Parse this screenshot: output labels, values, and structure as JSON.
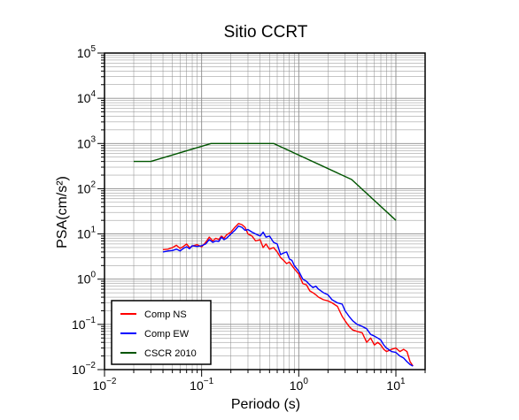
{
  "chart_data": {
    "type": "line",
    "title": "Sitio CCRT",
    "xlabel": "Periodo (s)",
    "ylabel": "PSA(cm/s²)",
    "x_scale": "log",
    "y_scale": "log",
    "xlim": [
      0.01,
      20
    ],
    "ylim": [
      0.01,
      100000
    ],
    "x_ticks": [
      {
        "value": 0.01,
        "base": "10",
        "exp": "−2"
      },
      {
        "value": 0.1,
        "base": "10",
        "exp": "−1"
      },
      {
        "value": 1,
        "base": "10",
        "exp": "0"
      },
      {
        "value": 10,
        "base": "10",
        "exp": "1"
      }
    ],
    "y_ticks": [
      {
        "value": 0.01,
        "base": "10",
        "exp": "−2"
      },
      {
        "value": 0.1,
        "base": "10",
        "exp": "−1"
      },
      {
        "value": 1,
        "base": "10",
        "exp": "0"
      },
      {
        "value": 10,
        "base": "10",
        "exp": "1"
      },
      {
        "value": 100,
        "base": "10",
        "exp": "2"
      },
      {
        "value": 1000,
        "base": "10",
        "exp": "3"
      },
      {
        "value": 10000,
        "base": "10",
        "exp": "4"
      },
      {
        "value": 100000,
        "base": "10",
        "exp": "5"
      }
    ],
    "grid": true,
    "legend_position": "bottom-left",
    "series": [
      {
        "name": "Comp NS",
        "color": "#ff0000",
        "points": [
          [
            0.04,
            4.5
          ],
          [
            0.045,
            4.6
          ],
          [
            0.05,
            5.0
          ],
          [
            0.055,
            5.6
          ],
          [
            0.06,
            4.8
          ],
          [
            0.065,
            5.3
          ],
          [
            0.07,
            6.0
          ],
          [
            0.075,
            5.0
          ],
          [
            0.08,
            5.4
          ],
          [
            0.09,
            5.8
          ],
          [
            0.1,
            5.2
          ],
          [
            0.11,
            6.5
          ],
          [
            0.12,
            8.5
          ],
          [
            0.13,
            7.0
          ],
          [
            0.14,
            8.0
          ],
          [
            0.15,
            7.5
          ],
          [
            0.16,
            9.0
          ],
          [
            0.17,
            8.0
          ],
          [
            0.18,
            9.5
          ],
          [
            0.2,
            11.0
          ],
          [
            0.22,
            14.0
          ],
          [
            0.24,
            17.0
          ],
          [
            0.26,
            16.0
          ],
          [
            0.28,
            14.0
          ],
          [
            0.3,
            10.0
          ],
          [
            0.33,
            9.0
          ],
          [
            0.36,
            7.0
          ],
          [
            0.4,
            7.5
          ],
          [
            0.43,
            5.0
          ],
          [
            0.46,
            6.0
          ],
          [
            0.5,
            4.6
          ],
          [
            0.55,
            5.0
          ],
          [
            0.6,
            4.0
          ],
          [
            0.65,
            3.0
          ],
          [
            0.7,
            2.6
          ],
          [
            0.75,
            2.2
          ],
          [
            0.8,
            2.4
          ],
          [
            0.85,
            2.0
          ],
          [
            0.9,
            1.7
          ],
          [
            1.0,
            1.3
          ],
          [
            1.1,
            0.8
          ],
          [
            1.2,
            0.75
          ],
          [
            1.3,
            0.55
          ],
          [
            1.4,
            0.5
          ],
          [
            1.5,
            0.45
          ],
          [
            1.6,
            0.4
          ],
          [
            1.8,
            0.35
          ],
          [
            2.0,
            0.33
          ],
          [
            2.2,
            0.3
          ],
          [
            2.5,
            0.25
          ],
          [
            2.8,
            0.15
          ],
          [
            3.0,
            0.12
          ],
          [
            3.3,
            0.09
          ],
          [
            3.6,
            0.075
          ],
          [
            4.0,
            0.07
          ],
          [
            4.5,
            0.065
          ],
          [
            5.0,
            0.04
          ],
          [
            5.5,
            0.05
          ],
          [
            6.0,
            0.035
          ],
          [
            6.5,
            0.04
          ],
          [
            7.0,
            0.035
          ],
          [
            7.5,
            0.028
          ],
          [
            8.0,
            0.025
          ],
          [
            9.0,
            0.028
          ],
          [
            10.0,
            0.03
          ],
          [
            11.0,
            0.025
          ],
          [
            12.0,
            0.028
          ],
          [
            13.0,
            0.025
          ],
          [
            14.0,
            0.015
          ],
          [
            15.0,
            0.012
          ]
        ]
      },
      {
        "name": "Comp EW",
        "color": "#0000ff",
        "points": [
          [
            0.04,
            4.0
          ],
          [
            0.045,
            4.2
          ],
          [
            0.05,
            4.3
          ],
          [
            0.055,
            4.6
          ],
          [
            0.06,
            4.2
          ],
          [
            0.065,
            4.8
          ],
          [
            0.07,
            5.2
          ],
          [
            0.075,
            4.7
          ],
          [
            0.08,
            5.5
          ],
          [
            0.09,
            5.3
          ],
          [
            0.1,
            5.5
          ],
          [
            0.11,
            6.0
          ],
          [
            0.12,
            7.5
          ],
          [
            0.13,
            6.5
          ],
          [
            0.14,
            7.0
          ],
          [
            0.15,
            6.8
          ],
          [
            0.16,
            8.5
          ],
          [
            0.17,
            7.5
          ],
          [
            0.18,
            8.0
          ],
          [
            0.2,
            10.0
          ],
          [
            0.22,
            12.0
          ],
          [
            0.24,
            15.0
          ],
          [
            0.26,
            14.0
          ],
          [
            0.28,
            12.0
          ],
          [
            0.3,
            12.5
          ],
          [
            0.33,
            11.0
          ],
          [
            0.36,
            10.0
          ],
          [
            0.4,
            9.0
          ],
          [
            0.43,
            11.0
          ],
          [
            0.46,
            8.5
          ],
          [
            0.5,
            9.0
          ],
          [
            0.55,
            6.5
          ],
          [
            0.6,
            6.0
          ],
          [
            0.65,
            3.5
          ],
          [
            0.7,
            3.8
          ],
          [
            0.75,
            4.0
          ],
          [
            0.8,
            2.8
          ],
          [
            0.85,
            2.6
          ],
          [
            0.9,
            2.0
          ],
          [
            1.0,
            1.5
          ],
          [
            1.1,
            1.0
          ],
          [
            1.2,
            0.9
          ],
          [
            1.3,
            0.75
          ],
          [
            1.4,
            0.65
          ],
          [
            1.5,
            0.7
          ],
          [
            1.6,
            0.6
          ],
          [
            1.8,
            0.5
          ],
          [
            2.0,
            0.45
          ],
          [
            2.2,
            0.35
          ],
          [
            2.5,
            0.3
          ],
          [
            2.8,
            0.28
          ],
          [
            3.0,
            0.2
          ],
          [
            3.3,
            0.15
          ],
          [
            3.6,
            0.12
          ],
          [
            4.0,
            0.1
          ],
          [
            4.5,
            0.09
          ],
          [
            5.0,
            0.08
          ],
          [
            5.5,
            0.06
          ],
          [
            6.0,
            0.055
          ],
          [
            6.5,
            0.05
          ],
          [
            7.0,
            0.045
          ],
          [
            7.5,
            0.035
          ],
          [
            8.0,
            0.03
          ],
          [
            9.0,
            0.025
          ],
          [
            10.0,
            0.024
          ],
          [
            11.0,
            0.02
          ],
          [
            12.0,
            0.018
          ],
          [
            13.0,
            0.015
          ],
          [
            14.0,
            0.013
          ],
          [
            15.0,
            0.012
          ]
        ]
      },
      {
        "name": "CSCR 2010",
        "color": "#005500",
        "points": [
          [
            0.02,
            400
          ],
          [
            0.03,
            400
          ],
          [
            0.125,
            1000
          ],
          [
            0.55,
            1000
          ],
          [
            3.5,
            160
          ],
          [
            10.0,
            20
          ]
        ]
      }
    ]
  }
}
